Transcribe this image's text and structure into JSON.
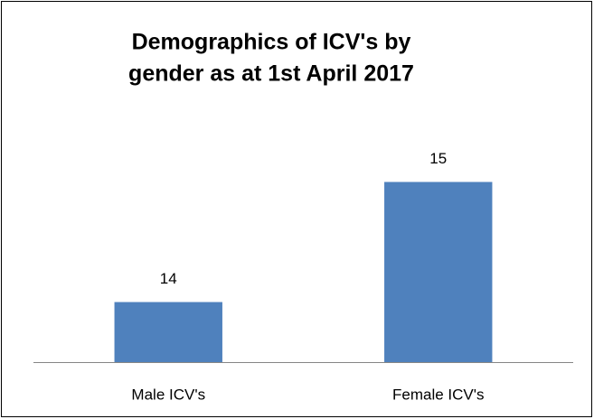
{
  "chart_data": {
    "type": "bar",
    "title": [
      "Demographics of ICV's  by",
      "gender as at 1st April 2017"
    ],
    "categories": [
      "Male ICV's",
      "Female ICV's"
    ],
    "values": [
      14,
      15
    ],
    "color": "#4f81bd",
    "ylim": [
      13.5,
      15.5
    ]
  }
}
